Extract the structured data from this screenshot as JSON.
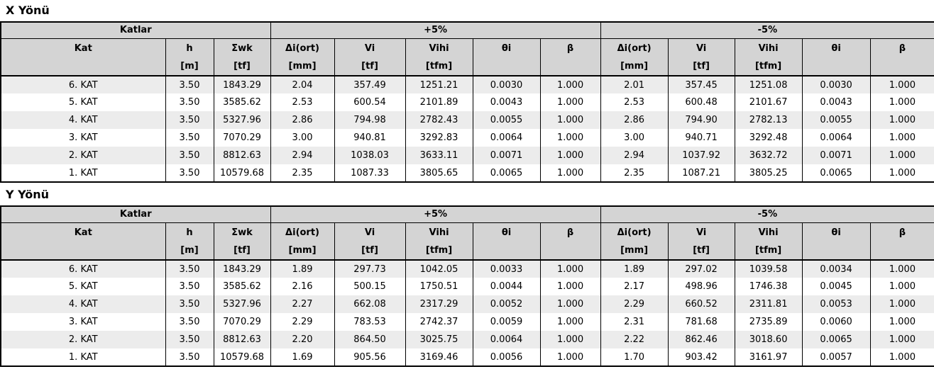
{
  "colors": {
    "header_bg": "#d4d4d4",
    "row_alt_bg": "#ececec",
    "row_bg": "#ffffff",
    "border": "#000000",
    "text": "#000000"
  },
  "tables": [
    {
      "title": "X Yönü",
      "groups": [
        {
          "label": "Katlar",
          "span": 3
        },
        {
          "label": "+5%",
          "span": 5
        },
        {
          "label": "-5%",
          "span": 5
        }
      ],
      "columns": [
        {
          "name": "Kat",
          "unit": ""
        },
        {
          "name": "h",
          "unit": "[m]"
        },
        {
          "name": "Σwk",
          "unit": "[tf]"
        },
        {
          "name": "Δi(ort)",
          "unit": "[mm]"
        },
        {
          "name": "Vi",
          "unit": "[tf]"
        },
        {
          "name": "Vihi",
          "unit": "[tfm]"
        },
        {
          "name": "θi",
          "unit": ""
        },
        {
          "name": "β",
          "unit": ""
        },
        {
          "name": "Δi(ort)",
          "unit": "[mm]"
        },
        {
          "name": "Vi",
          "unit": "[tf]"
        },
        {
          "name": "Vihi",
          "unit": "[tfm]"
        },
        {
          "name": "θi",
          "unit": ""
        },
        {
          "name": "β",
          "unit": ""
        }
      ],
      "rows": [
        [
          "6. KAT",
          "3.50",
          "1843.29",
          "2.04",
          "357.49",
          "1251.21",
          "0.0030",
          "1.000",
          "2.01",
          "357.45",
          "1251.08",
          "0.0030",
          "1.000"
        ],
        [
          "5. KAT",
          "3.50",
          "3585.62",
          "2.53",
          "600.54",
          "2101.89",
          "0.0043",
          "1.000",
          "2.53",
          "600.48",
          "2101.67",
          "0.0043",
          "1.000"
        ],
        [
          "4. KAT",
          "3.50",
          "5327.96",
          "2.86",
          "794.98",
          "2782.43",
          "0.0055",
          "1.000",
          "2.86",
          "794.90",
          "2782.13",
          "0.0055",
          "1.000"
        ],
        [
          "3. KAT",
          "3.50",
          "7070.29",
          "3.00",
          "940.81",
          "3292.83",
          "0.0064",
          "1.000",
          "3.00",
          "940.71",
          "3292.48",
          "0.0064",
          "1.000"
        ],
        [
          "2. KAT",
          "3.50",
          "8812.63",
          "2.94",
          "1038.03",
          "3633.11",
          "0.0071",
          "1.000",
          "2.94",
          "1037.92",
          "3632.72",
          "0.0071",
          "1.000"
        ],
        [
          "1. KAT",
          "3.50",
          "10579.68",
          "2.35",
          "1087.33",
          "3805.65",
          "0.0065",
          "1.000",
          "2.35",
          "1087.21",
          "3805.25",
          "0.0065",
          "1.000"
        ]
      ]
    },
    {
      "title": "Y Yönü",
      "groups": [
        {
          "label": "Katlar",
          "span": 3
        },
        {
          "label": "+5%",
          "span": 5
        },
        {
          "label": "-5%",
          "span": 5
        }
      ],
      "columns": [
        {
          "name": "Kat",
          "unit": ""
        },
        {
          "name": "h",
          "unit": "[m]"
        },
        {
          "name": "Σwk",
          "unit": "[tf]"
        },
        {
          "name": "Δi(ort)",
          "unit": "[mm]"
        },
        {
          "name": "Vi",
          "unit": "[tf]"
        },
        {
          "name": "Vihi",
          "unit": "[tfm]"
        },
        {
          "name": "θi",
          "unit": ""
        },
        {
          "name": "β",
          "unit": ""
        },
        {
          "name": "Δi(ort)",
          "unit": "[mm]"
        },
        {
          "name": "Vi",
          "unit": "[tf]"
        },
        {
          "name": "Vihi",
          "unit": "[tfm]"
        },
        {
          "name": "θi",
          "unit": ""
        },
        {
          "name": "β",
          "unit": ""
        }
      ],
      "rows": [
        [
          "6. KAT",
          "3.50",
          "1843.29",
          "1.89",
          "297.73",
          "1042.05",
          "0.0033",
          "1.000",
          "1.89",
          "297.02",
          "1039.58",
          "0.0034",
          "1.000"
        ],
        [
          "5. KAT",
          "3.50",
          "3585.62",
          "2.16",
          "500.15",
          "1750.51",
          "0.0044",
          "1.000",
          "2.17",
          "498.96",
          "1746.38",
          "0.0045",
          "1.000"
        ],
        [
          "4. KAT",
          "3.50",
          "5327.96",
          "2.27",
          "662.08",
          "2317.29",
          "0.0052",
          "1.000",
          "2.29",
          "660.52",
          "2311.81",
          "0.0053",
          "1.000"
        ],
        [
          "3. KAT",
          "3.50",
          "7070.29",
          "2.29",
          "783.53",
          "2742.37",
          "0.0059",
          "1.000",
          "2.31",
          "781.68",
          "2735.89",
          "0.0060",
          "1.000"
        ],
        [
          "2. KAT",
          "3.50",
          "8812.63",
          "2.20",
          "864.50",
          "3025.75",
          "0.0064",
          "1.000",
          "2.22",
          "862.46",
          "3018.60",
          "0.0065",
          "1.000"
        ],
        [
          "1. KAT",
          "3.50",
          "10579.68",
          "1.69",
          "905.56",
          "3169.46",
          "0.0056",
          "1.000",
          "1.70",
          "903.42",
          "3161.97",
          "0.0057",
          "1.000"
        ]
      ]
    }
  ]
}
